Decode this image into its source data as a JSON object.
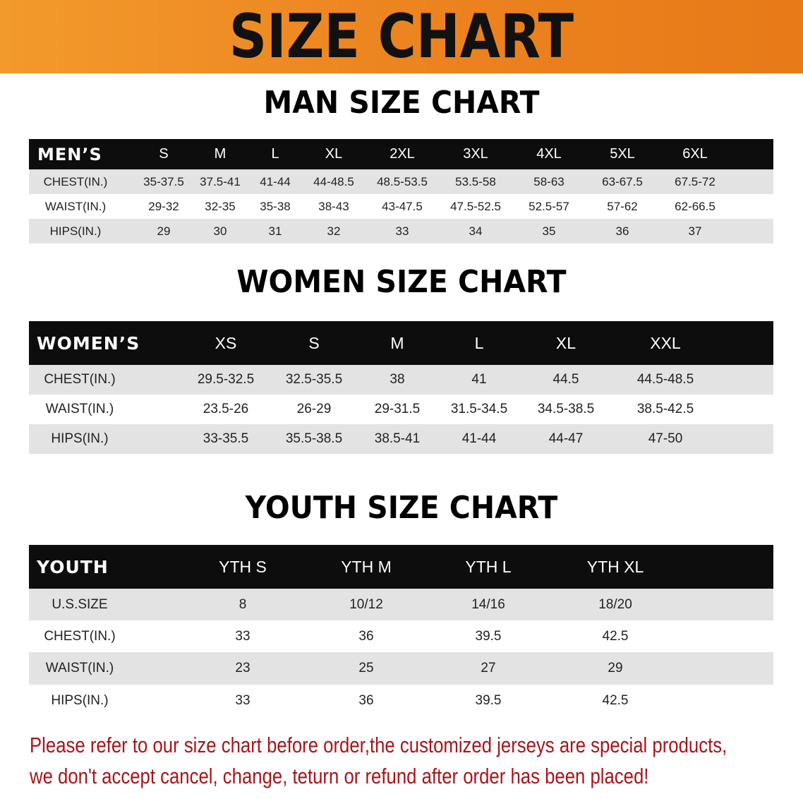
{
  "banner": {
    "title": "SIZE CHART",
    "colors": {
      "orange": "#ec8420",
      "header_bg": "#0d0d0d",
      "row_grey": "#e3e3e3",
      "note": "#a8141a"
    }
  },
  "men": {
    "section_title": "MAN SIZE CHART",
    "header": "MEN’S",
    "sizes": [
      "S",
      "M",
      "L",
      "XL",
      "2XL",
      "3XL",
      "4XL",
      "5XL",
      "6XL"
    ],
    "rows": [
      {
        "label": "CHEST(IN.)",
        "values": [
          "35-37.5",
          "37.5-41",
          "41-44",
          "44-48.5",
          "48.5-53.5",
          "53.5-58",
          "58-63",
          "63-67.5",
          "67.5-72"
        ]
      },
      {
        "label": "WAIST(IN.)",
        "values": [
          "29-32",
          "32-35",
          "35-38",
          "38-43",
          "43-47.5",
          "47.5-52.5",
          "52.5-57",
          "57-62",
          "62-66.5"
        ]
      },
      {
        "label": "HIPS(IN.)",
        "values": [
          "29",
          "30",
          "31",
          "32",
          "33",
          "34",
          "35",
          "36",
          "37"
        ]
      }
    ]
  },
  "women": {
    "section_title": "WOMEN SIZE CHART",
    "header": "WOMEN’S",
    "sizes": [
      "XS",
      "S",
      "M",
      "L",
      "XL",
      "XXL"
    ],
    "rows": [
      {
        "label": "CHEST(IN.)",
        "values": [
          "29.5-32.5",
          "32.5-35.5",
          "38",
          "41",
          "44.5",
          "44.5-48.5"
        ]
      },
      {
        "label": "WAIST(IN.)",
        "values": [
          "23.5-26",
          "26-29",
          "29-31.5",
          "31.5-34.5",
          "34.5-38.5",
          "38.5-42.5"
        ]
      },
      {
        "label": "HIPS(IN.)",
        "values": [
          "33-35.5",
          "35.5-38.5",
          "38.5-41",
          "41-44",
          "44-47",
          "47-50"
        ]
      }
    ]
  },
  "youth": {
    "section_title": "YOUTH SIZE CHART",
    "header": "YOUTH",
    "sizes": [
      "YTH S",
      "YTH M",
      "YTH L",
      "YTH XL"
    ],
    "rows": [
      {
        "label": "U.S.SIZE",
        "values": [
          "8",
          "10/12",
          "14/16",
          "18/20"
        ]
      },
      {
        "label": "CHEST(IN.)",
        "values": [
          "33",
          "36",
          "39.5",
          "42.5"
        ]
      },
      {
        "label": "WAIST(IN.)",
        "values": [
          "23",
          "25",
          "27",
          "29"
        ]
      },
      {
        "label": "HIPS(IN.)",
        "values": [
          "33",
          "36",
          "39.5",
          "42.5"
        ]
      }
    ]
  },
  "notice": {
    "line1": "Please refer to our size chart before order,the customized jerseys are special products,",
    "line2": "we don't accept cancel, change, teturn or refund after order has been placed!"
  }
}
